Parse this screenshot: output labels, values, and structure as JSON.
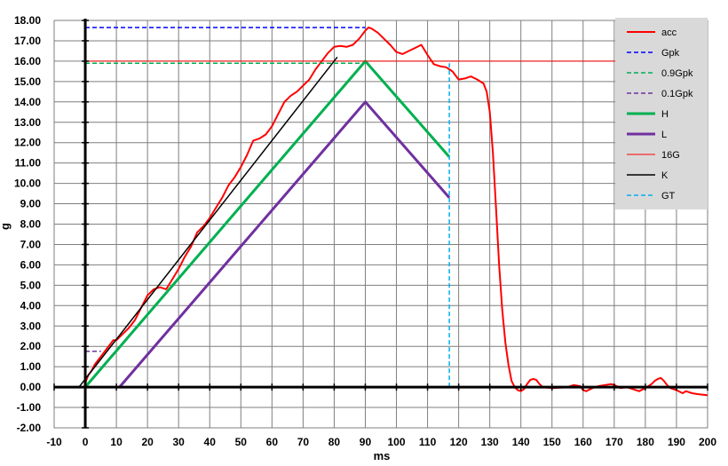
{
  "chart_data": {
    "type": "line",
    "title": "",
    "xlabel": "ms",
    "ylabel": "g",
    "xlim": [
      -10,
      200
    ],
    "ylim": [
      -2,
      18
    ],
    "x_ticks": [
      -10,
      0,
      10,
      20,
      30,
      40,
      50,
      60,
      70,
      80,
      90,
      100,
      110,
      120,
      130,
      140,
      150,
      160,
      170,
      180,
      190,
      200
    ],
    "y_ticks": [
      "-2.00",
      "-1.00",
      "0.00",
      "1.00",
      "2.00",
      "3.00",
      "4.00",
      "5.00",
      "6.00",
      "7.00",
      "8.00",
      "9.00",
      "10.00",
      "11.00",
      "12.00",
      "13.00",
      "14.00",
      "15.00",
      "16.00",
      "17.00",
      "18.00"
    ],
    "grid": true,
    "legend_position": "top-right",
    "series": [
      {
        "name": "acc",
        "color": "#ff0000",
        "width": 2,
        "dash": "",
        "points": [
          [
            0,
            0.2
          ],
          [
            1,
            0.6
          ],
          [
            2,
            0.8
          ],
          [
            3,
            1.1
          ],
          [
            5,
            1.5
          ],
          [
            7,
            1.9
          ],
          [
            9,
            2.3
          ],
          [
            10,
            2.3
          ],
          [
            12,
            2.6
          ],
          [
            14,
            2.9
          ],
          [
            16,
            3.3
          ],
          [
            18,
            3.9
          ],
          [
            20,
            4.5
          ],
          [
            22,
            4.8
          ],
          [
            24,
            4.9
          ],
          [
            26,
            4.8
          ],
          [
            28,
            5.3
          ],
          [
            30,
            5.8
          ],
          [
            32,
            6.4
          ],
          [
            34,
            6.9
          ],
          [
            36,
            7.6
          ],
          [
            38,
            7.9
          ],
          [
            40,
            8.3
          ],
          [
            42,
            8.8
          ],
          [
            44,
            9.3
          ],
          [
            46,
            9.9
          ],
          [
            48,
            10.3
          ],
          [
            50,
            10.8
          ],
          [
            52,
            11.4
          ],
          [
            54,
            12.1
          ],
          [
            56,
            12.2
          ],
          [
            58,
            12.4
          ],
          [
            60,
            12.8
          ],
          [
            62,
            13.4
          ],
          [
            64,
            14.0
          ],
          [
            66,
            14.3
          ],
          [
            68,
            14.5
          ],
          [
            70,
            14.8
          ],
          [
            72,
            15.1
          ],
          [
            74,
            15.6
          ],
          [
            76,
            16.0
          ],
          [
            78,
            16.4
          ],
          [
            80,
            16.7
          ],
          [
            82,
            16.75
          ],
          [
            84,
            16.7
          ],
          [
            86,
            16.8
          ],
          [
            88,
            17.1
          ],
          [
            90,
            17.5
          ],
          [
            91,
            17.65
          ],
          [
            92,
            17.6
          ],
          [
            94,
            17.4
          ],
          [
            96,
            17.1
          ],
          [
            98,
            16.8
          ],
          [
            100,
            16.45
          ],
          [
            102,
            16.35
          ],
          [
            104,
            16.5
          ],
          [
            106,
            16.65
          ],
          [
            108,
            16.8
          ],
          [
            110,
            16.3
          ],
          [
            112,
            15.85
          ],
          [
            114,
            15.75
          ],
          [
            116,
            15.7
          ],
          [
            118,
            15.5
          ],
          [
            120,
            15.1
          ],
          [
            122,
            15.15
          ],
          [
            124,
            15.25
          ],
          [
            126,
            15.1
          ],
          [
            128,
            14.9
          ],
          [
            129,
            14.5
          ],
          [
            130,
            13.5
          ],
          [
            131,
            11.5
          ],
          [
            132,
            8.8
          ],
          [
            133,
            6.0
          ],
          [
            134,
            3.8
          ],
          [
            135,
            2.2
          ],
          [
            136,
            1.1
          ],
          [
            137,
            0.3
          ],
          [
            138,
            0.0
          ],
          [
            139,
            -0.15
          ],
          [
            140,
            -0.2
          ],
          [
            141,
            -0.1
          ],
          [
            142,
            0.15
          ],
          [
            143,
            0.35
          ],
          [
            144,
            0.4
          ],
          [
            145,
            0.35
          ],
          [
            146,
            0.15
          ],
          [
            147,
            0.0
          ],
          [
            150,
            -0.05
          ],
          [
            153,
            -0.02
          ],
          [
            155,
            0.0
          ],
          [
            157,
            0.1
          ],
          [
            159,
            0.05
          ],
          [
            160,
            -0.15
          ],
          [
            161,
            -0.2
          ],
          [
            163,
            -0.05
          ],
          [
            165,
            0.05
          ],
          [
            167,
            0.1
          ],
          [
            169,
            0.15
          ],
          [
            170,
            0.1
          ],
          [
            172,
            -0.05
          ],
          [
            174,
            0.0
          ],
          [
            176,
            -0.1
          ],
          [
            178,
            -0.2
          ],
          [
            180,
            -0.05
          ],
          [
            182,
            0.15
          ],
          [
            183,
            0.3
          ],
          [
            184,
            0.4
          ],
          [
            185,
            0.45
          ],
          [
            186,
            0.3
          ],
          [
            187,
            0.1
          ],
          [
            188,
            -0.05
          ],
          [
            190,
            -0.15
          ],
          [
            192,
            -0.3
          ],
          [
            193,
            -0.2
          ],
          [
            195,
            -0.3
          ],
          [
            197,
            -0.35
          ],
          [
            200,
            -0.4
          ]
        ]
      },
      {
        "name": "Gpk",
        "color": "#0000ff",
        "width": 1.5,
        "dash": "5,3",
        "points": [
          [
            0,
            17.65
          ],
          [
            90,
            17.65
          ]
        ]
      },
      {
        "name": "0.9Gpk",
        "color": "#00b050",
        "width": 1.5,
        "dash": "5,3",
        "points": [
          [
            0,
            15.9
          ],
          [
            90,
            15.9
          ]
        ]
      },
      {
        "name": "0.1Gpk",
        "color": "#7030a0",
        "width": 1.5,
        "dash": "5,3",
        "points": [
          [
            0,
            1.76
          ],
          [
            5,
            1.76
          ]
        ]
      },
      {
        "name": "H",
        "color": "#00b050",
        "width": 3,
        "dash": "",
        "points": [
          [
            0,
            0
          ],
          [
            90,
            16
          ],
          [
            117,
            11.3
          ]
        ]
      },
      {
        "name": "L",
        "color": "#7030a0",
        "width": 3,
        "dash": "",
        "points": [
          [
            11,
            0
          ],
          [
            90,
            14
          ],
          [
            117,
            9.3
          ]
        ]
      },
      {
        "name": "16G",
        "color": "#ff0000",
        "width": 1,
        "dash": "",
        "points": [
          [
            0,
            16
          ],
          [
            200,
            16
          ]
        ]
      },
      {
        "name": "K",
        "color": "#000000",
        "width": 1.5,
        "dash": "",
        "points": [
          [
            -2,
            0
          ],
          [
            81,
            16.2
          ]
        ]
      },
      {
        "name": "GT",
        "color": "#00b0f0",
        "width": 1.5,
        "dash": "5,3",
        "points": [
          [
            117,
            0
          ],
          [
            117,
            15.9
          ]
        ]
      }
    ]
  }
}
